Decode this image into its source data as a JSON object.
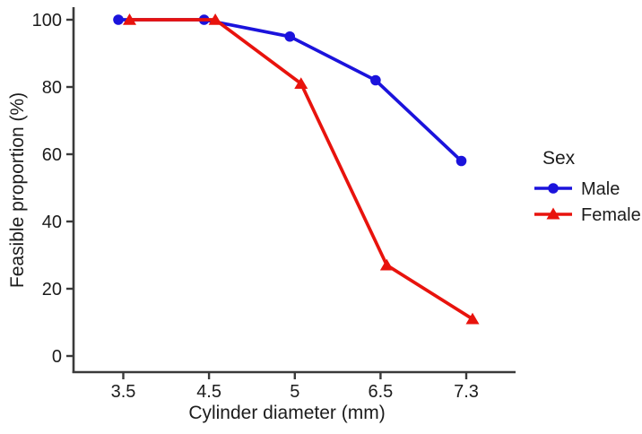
{
  "chart_data": {
    "type": "line",
    "title": "",
    "xlabel": "Cylinder diameter (mm)",
    "ylabel": "Feasible proportion (%)",
    "categories": [
      "3.5",
      "4.5",
      "5",
      "6.5",
      "7.3"
    ],
    "x_values": [
      3.5,
      4.5,
      5,
      6.5,
      7.3
    ],
    "series": [
      {
        "name": "Male",
        "marker": "circle",
        "color": "#1b13dc",
        "values": [
          100,
          100,
          95,
          82,
          58
        ]
      },
      {
        "name": "Female",
        "marker": "triangle",
        "color": "#e8130d",
        "values": [
          100,
          100,
          81,
          27,
          11
        ]
      }
    ],
    "ylim": [
      0,
      100
    ],
    "ytick_labels": [
      "0",
      "20",
      "40",
      "60",
      "80",
      "100"
    ],
    "legend_title": "Sex",
    "legend_position": "right",
    "grid": false,
    "axis_color": "#3a3a3a",
    "text_color": "#1c1c1c"
  }
}
